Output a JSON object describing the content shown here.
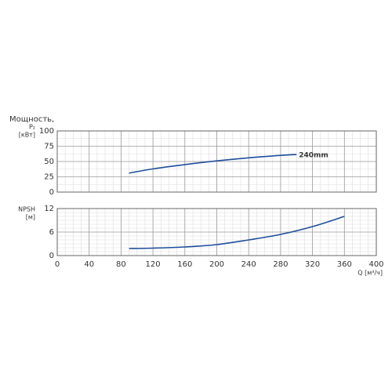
{
  "chart_data": [
    {
      "type": "line",
      "y_label": [
        "Мощность,",
        "P₂",
        "[кВт]"
      ],
      "x": [
        90,
        120,
        160,
        200,
        240,
        280,
        300
      ],
      "series": [
        {
          "name": "240mm",
          "color": "#1f4e9c",
          "values": [
            31,
            38,
            45,
            51,
            56,
            60,
            61.5
          ]
        }
      ],
      "xlim": [
        0,
        400
      ],
      "xticks": [
        0,
        40,
        80,
        120,
        160,
        200,
        240,
        280,
        320,
        360,
        400
      ],
      "ylim": [
        0,
        100
      ],
      "yticks": [
        0,
        25,
        50,
        75,
        100
      ],
      "grid": true
    },
    {
      "type": "line",
      "y_label": [
        "NPSH",
        "[м]"
      ],
      "x_label": "Q [м³/ч]",
      "x": [
        90,
        120,
        160,
        200,
        240,
        280,
        320,
        360
      ],
      "series": [
        {
          "color": "#1f4e9c",
          "values": [
            1.8,
            1.9,
            2.2,
            2.8,
            4,
            5.4,
            7.4,
            10
          ]
        }
      ],
      "xlim": [
        0,
        400
      ],
      "xticks": [
        0,
        40,
        80,
        120,
        160,
        200,
        240,
        280,
        320,
        360,
        400
      ],
      "ylim": [
        0,
        12
      ],
      "yticks": [
        0,
        6,
        12
      ],
      "grid": true
    }
  ]
}
